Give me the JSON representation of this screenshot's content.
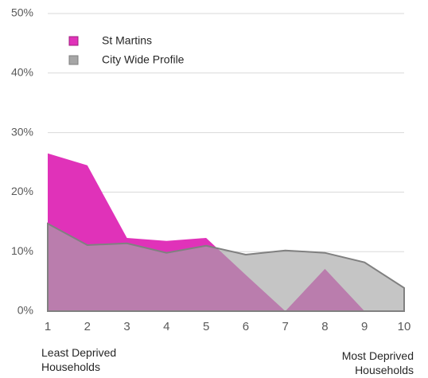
{
  "chart_data": {
    "type": "area",
    "x": [
      1,
      2,
      3,
      4,
      5,
      6,
      7,
      8,
      9,
      10
    ],
    "series": [
      {
        "name": "St Martins",
        "color": "#e032b9",
        "values": [
          26.5,
          24.5,
          12.3,
          11.8,
          12.3,
          6.1,
          0,
          7.1,
          0,
          0
        ]
      },
      {
        "name": "City Wide Profile",
        "color": "#a6a6a6",
        "values": [
          14.7,
          11.1,
          11.4,
          9.8,
          11.0,
          9.5,
          10.2,
          9.8,
          8.2,
          3.9
        ]
      }
    ],
    "xlim": [
      1,
      10
    ],
    "xticks": [
      1,
      2,
      3,
      4,
      5,
      6,
      7,
      8,
      9,
      10
    ],
    "ylim": [
      0,
      50
    ],
    "yticks": [
      {
        "value": 0,
        "label": "0%"
      },
      {
        "value": 10,
        "label": "10%"
      },
      {
        "value": 20,
        "label": "20%"
      },
      {
        "value": 30,
        "label": "30%"
      },
      {
        "value": 40,
        "label": "40%"
      },
      {
        "value": 50,
        "label": "50%"
      }
    ],
    "grid": true,
    "legend": "upper left",
    "annotations": [
      "Least Deprived Households",
      "Most Deprived Households"
    ]
  }
}
